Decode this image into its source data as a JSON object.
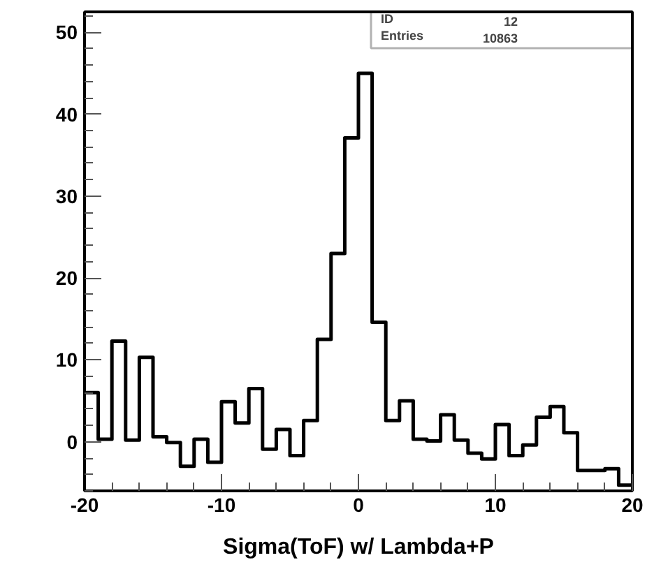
{
  "chart_data": {
    "type": "histogram",
    "xlabel": "Sigma(ToF) w/ Lambda+P",
    "bins": [
      -20,
      -19,
      -18,
      -17,
      -16,
      -15,
      -14,
      -13,
      -12,
      -11,
      -10,
      -9,
      -8,
      -7,
      -6,
      -5,
      -4,
      -3,
      -2,
      -1,
      0,
      1,
      2,
      3,
      4,
      5,
      6,
      7,
      8,
      9,
      10,
      11,
      12,
      13,
      14,
      15,
      16,
      17,
      18,
      19,
      20
    ],
    "values": [
      6,
      0.3,
      12.3,
      0.2,
      10.3,
      0.6,
      -0.1,
      -3,
      0.3,
      -2.5,
      4.9,
      2.3,
      6.5,
      -0.9,
      1.5,
      -1.7,
      2.6,
      12.5,
      23,
      37.1,
      45,
      14.6,
      2.6,
      5,
      0.3,
      0.1,
      3.3,
      0.2,
      -1.4,
      -2.1,
      2.1,
      -1.7,
      -0.4,
      3,
      4.3,
      1.1,
      -3.5,
      -3.5,
      -3.3,
      -5.3
    ],
    "color": "#000000",
    "xlim": [
      -20,
      20
    ],
    "xticks": [
      -20,
      -10,
      0,
      10,
      20
    ],
    "ylim": [
      -6,
      52.5
    ],
    "yticks": [
      0,
      10,
      20,
      30,
      40,
      50
    ],
    "grid": false,
    "annotations": [
      "ID 12",
      "Entries 10863"
    ]
  }
}
